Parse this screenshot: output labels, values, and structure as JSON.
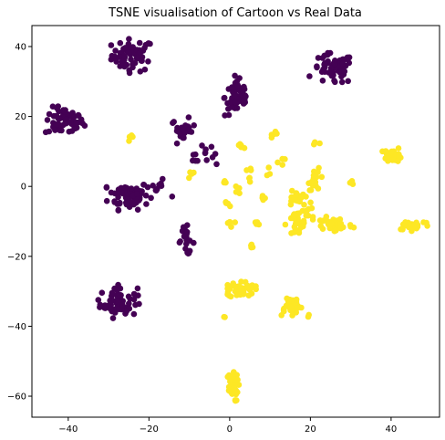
{
  "chart_data": {
    "type": "scatter",
    "title": "TSNE visualisation of Cartoon vs Real Data",
    "xlabel": "",
    "ylabel": "",
    "xlim": [
      -49,
      52
    ],
    "ylim": [
      -66,
      46
    ],
    "xticks": [
      -40,
      -20,
      0,
      20,
      40
    ],
    "yticks": [
      -60,
      -40,
      -20,
      0,
      20,
      40
    ],
    "grid": false,
    "legend": "none",
    "colors": {
      "class0": "#440154",
      "class1": "#fde725"
    },
    "clusters": [
      {
        "class": 0,
        "x": -24.0,
        "y": 37.5,
        "sx": 2.6,
        "sy": 2.3,
        "n": 60
      },
      {
        "class": 0,
        "x": -41.0,
        "y": 18.5,
        "sx": 2.4,
        "sy": 2.0,
        "n": 60
      },
      {
        "class": 0,
        "x": -25.0,
        "y": -2.5,
        "sx": 2.5,
        "sy": 2.0,
        "n": 70
      },
      {
        "class": 0,
        "x": -18.0,
        "y": -0.5,
        "sx": 1.7,
        "sy": 1.2,
        "n": 10
      },
      {
        "class": 0,
        "x": -27.5,
        "y": -33.0,
        "sx": 2.3,
        "sy": 2.2,
        "n": 60
      },
      {
        "class": 0,
        "x": -11.5,
        "y": 16.0,
        "sx": 1.5,
        "sy": 1.7,
        "n": 22
      },
      {
        "class": 0,
        "x": -8.0,
        "y": 9.5,
        "sx": 1.2,
        "sy": 1.0,
        "n": 8
      },
      {
        "class": 0,
        "x": -10.8,
        "y": -15.5,
        "sx": 1.0,
        "sy": 2.0,
        "n": 22
      },
      {
        "class": 0,
        "x": -5.0,
        "y": 9.0,
        "sx": 0.8,
        "sy": 1.2,
        "n": 6
      },
      {
        "class": 0,
        "x": 2.0,
        "y": 25.5,
        "sx": 1.6,
        "sy": 2.8,
        "n": 55
      },
      {
        "class": 0,
        "x": 25.5,
        "y": 33.5,
        "sx": 2.6,
        "sy": 2.2,
        "n": 60
      },
      {
        "class": 1,
        "x": -24.5,
        "y": 13.5,
        "sx": 0.6,
        "sy": 0.5,
        "n": 5
      },
      {
        "class": 1,
        "x": 3.0,
        "y": 11.5,
        "sx": 0.7,
        "sy": 0.5,
        "n": 5
      },
      {
        "class": 1,
        "x": 11.5,
        "y": 15.5,
        "sx": 0.5,
        "sy": 0.7,
        "n": 5
      },
      {
        "class": 1,
        "x": 21.0,
        "y": 12.0,
        "sx": 0.6,
        "sy": 0.5,
        "n": 4
      },
      {
        "class": 1,
        "x": 40.5,
        "y": 9.0,
        "sx": 1.2,
        "sy": 1.0,
        "n": 30
      },
      {
        "class": 1,
        "x": 13.0,
        "y": 7.0,
        "sx": 0.5,
        "sy": 0.6,
        "n": 4
      },
      {
        "class": 1,
        "x": 21.5,
        "y": 2.0,
        "sx": 1.0,
        "sy": 1.5,
        "n": 20
      },
      {
        "class": 1,
        "x": -9.5,
        "y": 3.5,
        "sx": 0.4,
        "sy": 0.8,
        "n": 4
      },
      {
        "class": 1,
        "x": -1.5,
        "y": 1.5,
        "sx": 0.4,
        "sy": 0.8,
        "n": 4
      },
      {
        "class": 1,
        "x": 5.0,
        "y": 3.5,
        "sx": 0.6,
        "sy": 1.0,
        "n": 6
      },
      {
        "class": 1,
        "x": 9.5,
        "y": 4.5,
        "sx": 0.4,
        "sy": 0.6,
        "n": 3
      },
      {
        "class": 1,
        "x": 2.0,
        "y": -0.5,
        "sx": 0.5,
        "sy": 0.8,
        "n": 4
      },
      {
        "class": 1,
        "x": 30.5,
        "y": 1.0,
        "sx": 0.3,
        "sy": 0.6,
        "n": 3
      },
      {
        "class": 1,
        "x": -1.0,
        "y": -4.5,
        "sx": 0.5,
        "sy": 0.7,
        "n": 4
      },
      {
        "class": 1,
        "x": 8.5,
        "y": -4.0,
        "sx": 0.4,
        "sy": 0.6,
        "n": 4
      },
      {
        "class": 1,
        "x": 16.0,
        "y": -3.5,
        "sx": 1.0,
        "sy": 1.5,
        "n": 15
      },
      {
        "class": 1,
        "x": 19.0,
        "y": -5.0,
        "sx": 0.8,
        "sy": 1.2,
        "n": 8
      },
      {
        "class": 1,
        "x": 0.0,
        "y": -10.5,
        "sx": 0.6,
        "sy": 0.5,
        "n": 5
      },
      {
        "class": 1,
        "x": 6.5,
        "y": -10.5,
        "sx": 0.5,
        "sy": 0.5,
        "n": 4
      },
      {
        "class": 1,
        "x": 16.5,
        "y": -11.0,
        "sx": 1.3,
        "sy": 2.0,
        "n": 25
      },
      {
        "class": 1,
        "x": 21.5,
        "y": -9.5,
        "sx": 1.5,
        "sy": 1.0,
        "n": 10
      },
      {
        "class": 1,
        "x": 26.5,
        "y": -11.0,
        "sx": 2.0,
        "sy": 1.2,
        "n": 40
      },
      {
        "class": 1,
        "x": 45.5,
        "y": -11.0,
        "sx": 2.2,
        "sy": 0.8,
        "n": 25
      },
      {
        "class": 1,
        "x": 5.5,
        "y": -17.5,
        "sx": 0.5,
        "sy": 0.5,
        "n": 4
      },
      {
        "class": 1,
        "x": 3.0,
        "y": -29.5,
        "sx": 1.6,
        "sy": 1.2,
        "n": 45
      },
      {
        "class": 1,
        "x": 15.0,
        "y": -34.0,
        "sx": 1.5,
        "sy": 1.5,
        "n": 30
      },
      {
        "class": 1,
        "x": 19.5,
        "y": -37.0,
        "sx": 0.3,
        "sy": 0.4,
        "n": 2
      },
      {
        "class": 1,
        "x": -1.5,
        "y": -37.0,
        "sx": 0.3,
        "sy": 0.4,
        "n": 2
      },
      {
        "class": 1,
        "x": 0.5,
        "y": -57.5,
        "sx": 0.8,
        "sy": 2.0,
        "n": 35
      }
    ]
  }
}
